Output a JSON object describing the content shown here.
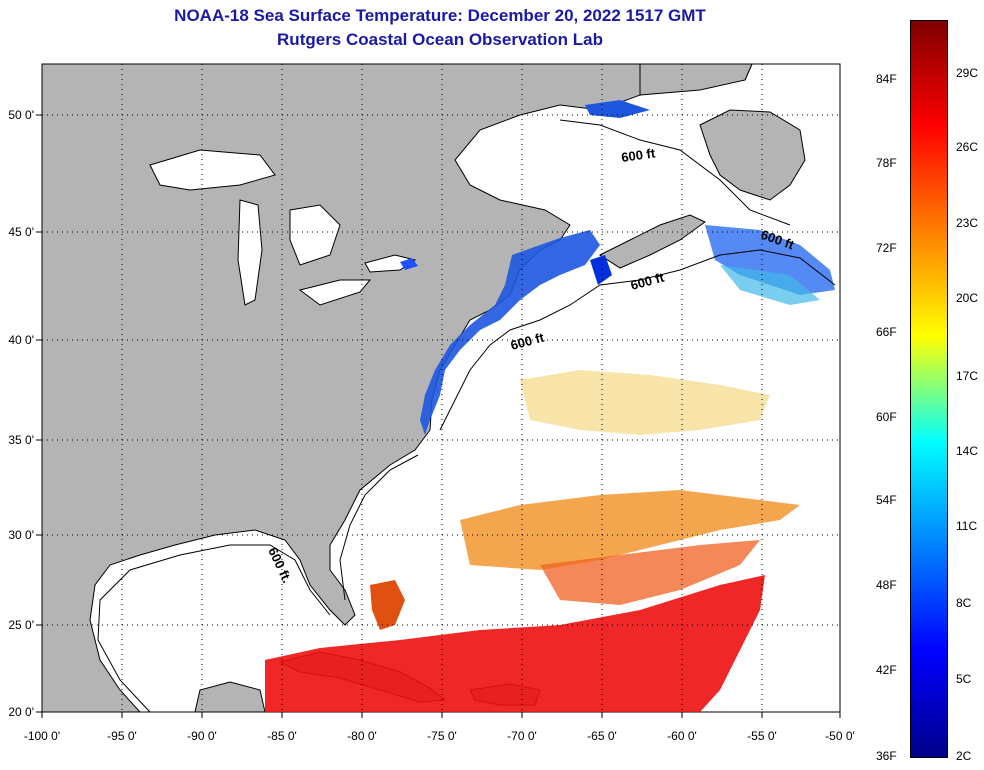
{
  "title_line1": "NOAA-18 Sea Surface Temperature:  December 20, 2022 1517 GMT",
  "title_line2": "Rutgers Coastal Ocean Observation Lab",
  "map": {
    "lon_ticks": [
      "-100 0'",
      "-95 0'",
      "-90 0'",
      "-85 0'",
      "-80 0'",
      "-75 0'",
      "-70 0'",
      "-65 0'",
      "-60 0'",
      "-55 0'",
      "-50 0'"
    ],
    "lat_ticks": [
      "50 0'",
      "45 0'",
      "40 0'",
      "35 0'",
      "30 0'",
      "25 0'",
      "20 0'"
    ],
    "contour_label": "600 ft",
    "contour_label_alt": "600 ft.",
    "land_color": "#b4b4b4",
    "ocean_color": "#ffffff"
  },
  "colorbar": {
    "f_labels": [
      "84F",
      "78F",
      "72F",
      "66F",
      "60F",
      "54F",
      "48F",
      "42F",
      "36F"
    ],
    "c_labels": [
      "29C",
      "26C",
      "23C",
      "20C",
      "17C",
      "14C",
      "11C",
      "8C",
      "5C",
      "2C"
    ],
    "gradient": [
      "#800000",
      "#ff0000",
      "#ff8000",
      "#ffff00",
      "#00ffff",
      "#0080ff",
      "#0000ff",
      "#00008b"
    ]
  }
}
